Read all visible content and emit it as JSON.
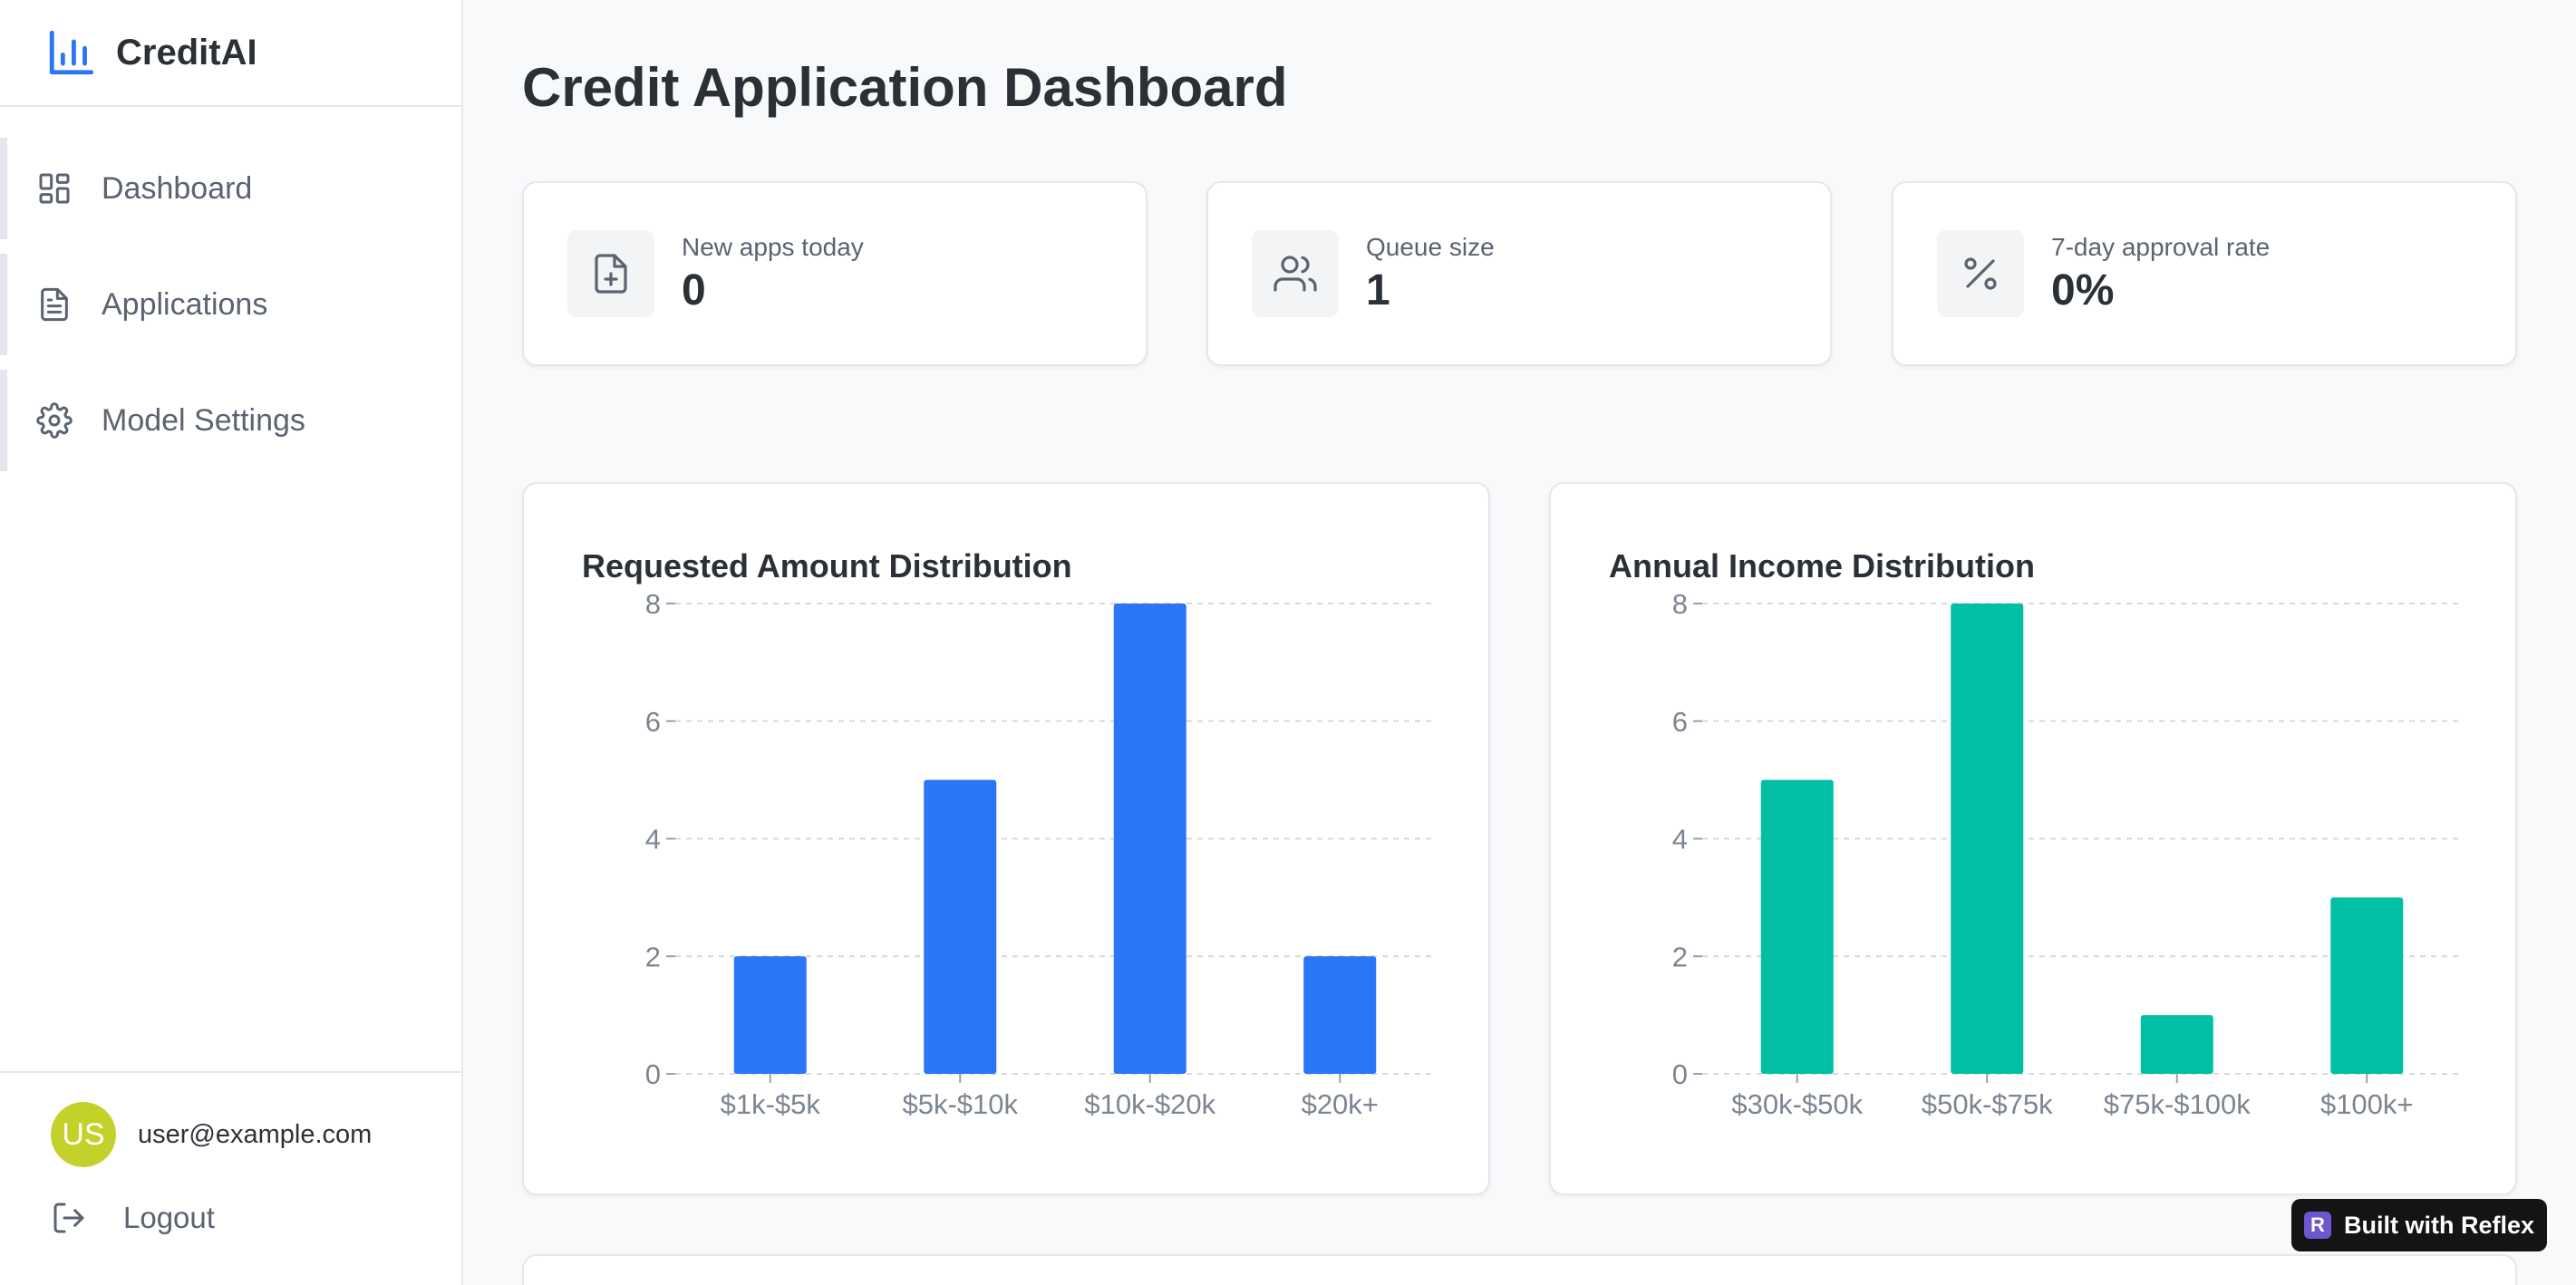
{
  "brand": {
    "name": "CreditAI",
    "icon": "bar-chart-icon",
    "accent": "#2b76f6"
  },
  "sidebar": {
    "items": [
      {
        "label": "Dashboard",
        "icon": "layout-dashboard-icon"
      },
      {
        "label": "Applications",
        "icon": "file-text-icon"
      },
      {
        "label": "Model Settings",
        "icon": "gear-icon"
      }
    ]
  },
  "user": {
    "initials": "US",
    "email": "user@example.com",
    "avatar_color": "#c5d12b"
  },
  "logout": {
    "label": "Logout",
    "icon": "logout-icon"
  },
  "page": {
    "title": "Credit Application Dashboard"
  },
  "stats": [
    {
      "label": "New apps today",
      "value": "0",
      "icon": "file-plus-icon"
    },
    {
      "label": "Queue size",
      "value": "1",
      "icon": "users-icon"
    },
    {
      "label": "7-day approval rate",
      "value": "0%",
      "icon": "percent-icon"
    }
  ],
  "chart_data": [
    {
      "type": "bar",
      "title": "Requested Amount Distribution",
      "categories": [
        "$1k-$5k",
        "$5k-$10k",
        "$10k-$20k",
        "$20k+"
      ],
      "values": [
        2,
        5,
        8,
        2
      ],
      "ylim": [
        0,
        8
      ],
      "yticks": [
        0,
        2,
        4,
        6,
        8
      ],
      "grid": true,
      "color": "#2b76f6"
    },
    {
      "type": "bar",
      "title": "Annual Income Distribution",
      "categories": [
        "$30k-$50k",
        "$50k-$75k",
        "$75k-$100k",
        "$100k+"
      ],
      "values": [
        5,
        8,
        1,
        3
      ],
      "ylim": [
        0,
        8
      ],
      "yticks": [
        0,
        2,
        4,
        6,
        8
      ],
      "grid": true,
      "color": "#00bfa5"
    }
  ],
  "badge": {
    "label": "Built with Reflex",
    "logo": "R"
  }
}
